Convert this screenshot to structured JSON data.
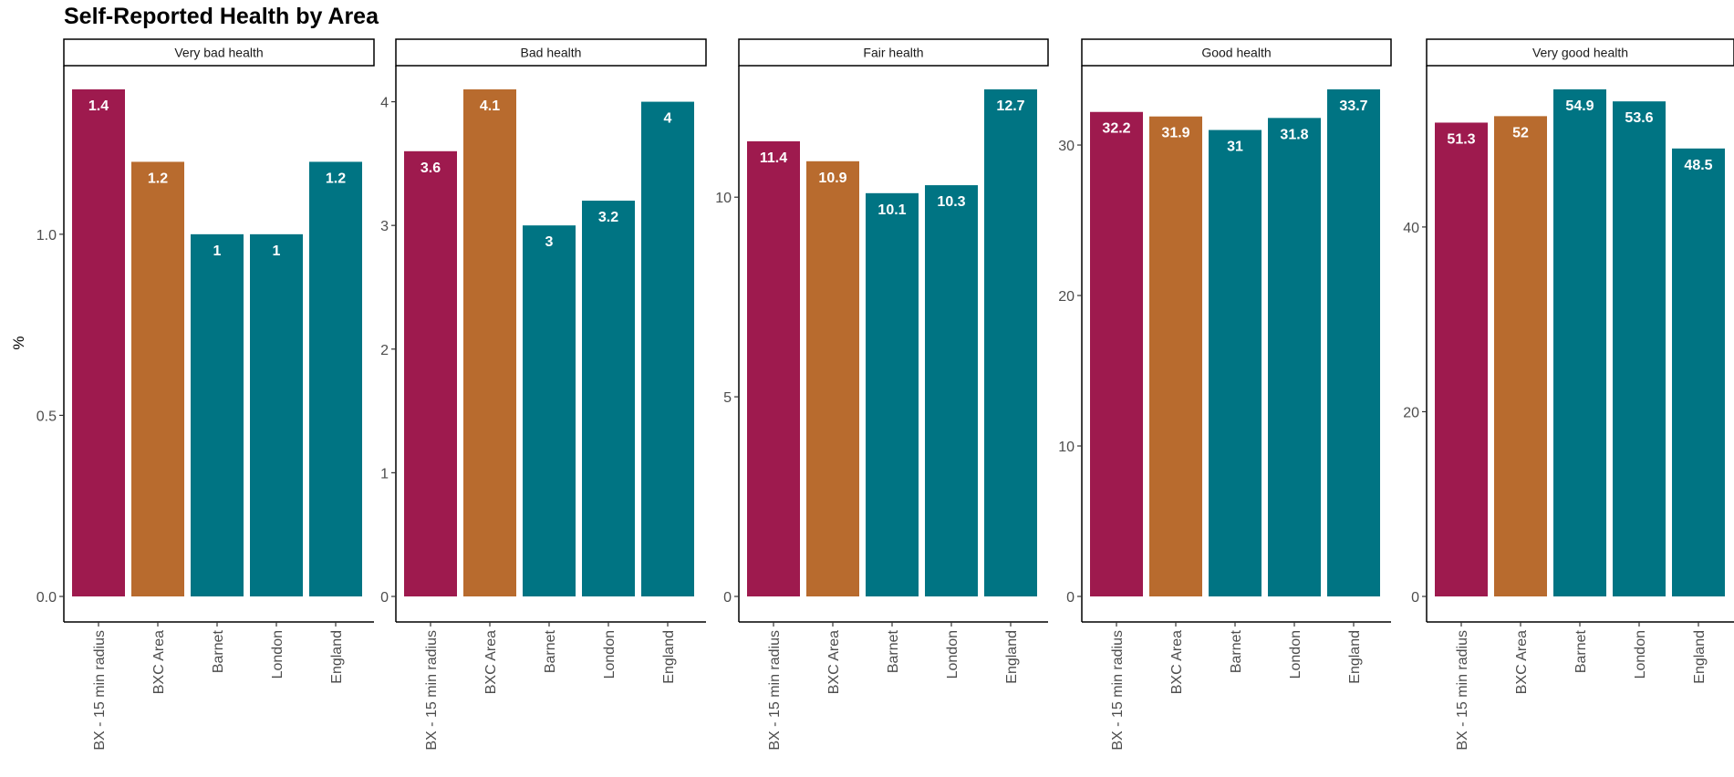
{
  "chart_data": {
    "type": "bar",
    "title": "Self-Reported Health by Area",
    "ylabel": "%",
    "xlabel": "",
    "grid": false,
    "legend": "none",
    "categories": [
      "BX - 15 min radius",
      "BXC Area",
      "Barnet",
      "London",
      "England"
    ],
    "colors": {
      "BX - 15 min radius": "#9E1A4E",
      "BXC Area": "#B86B2E",
      "Barnet": "#007483",
      "London": "#007483",
      "England": "#007483"
    },
    "panels": [
      {
        "name": "Very bad health",
        "values": [
          1.4,
          1.2,
          1,
          1,
          1.2
        ],
        "labels": [
          "1.4",
          "1.2",
          "1",
          "1",
          "1.2"
        ],
        "ylim": [
          0,
          1.4
        ],
        "ticks": [
          0.0,
          0.5,
          1.0
        ],
        "tick_labels": [
          "0.0",
          "0.5",
          "1.0"
        ]
      },
      {
        "name": "Bad health",
        "values": [
          3.6,
          4.1,
          3,
          3.2,
          4
        ],
        "labels": [
          "3.6",
          "4.1",
          "3",
          "3.2",
          "4"
        ],
        "ylim": [
          0,
          4.1
        ],
        "ticks": [
          0,
          1,
          2,
          3,
          4
        ],
        "tick_labels": [
          "0",
          "1",
          "2",
          "3",
          "4"
        ]
      },
      {
        "name": "Fair health",
        "values": [
          11.4,
          10.9,
          10.1,
          10.3,
          12.7
        ],
        "labels": [
          "11.4",
          "10.9",
          "10.1",
          "10.3",
          "12.7"
        ],
        "ylim": [
          0,
          12.7
        ],
        "ticks": [
          0,
          5,
          10
        ],
        "tick_labels": [
          "0",
          "5",
          "10"
        ]
      },
      {
        "name": "Good health",
        "values": [
          32.2,
          31.9,
          31,
          31.8,
          33.7
        ],
        "labels": [
          "32.2",
          "31.9",
          "31",
          "31.8",
          "33.7"
        ],
        "ylim": [
          0,
          33.7
        ],
        "ticks": [
          0,
          10,
          20,
          30
        ],
        "tick_labels": [
          "0",
          "10",
          "20",
          "30"
        ]
      },
      {
        "name": "Very good health",
        "values": [
          51.3,
          52,
          54.9,
          53.6,
          48.5
        ],
        "labels": [
          "51.3",
          "52",
          "54.9",
          "53.6",
          "48.5"
        ],
        "ylim": [
          0,
          54.9
        ],
        "ticks": [
          0,
          20,
          40
        ],
        "tick_labels": [
          "0",
          "20",
          "40"
        ]
      }
    ]
  }
}
